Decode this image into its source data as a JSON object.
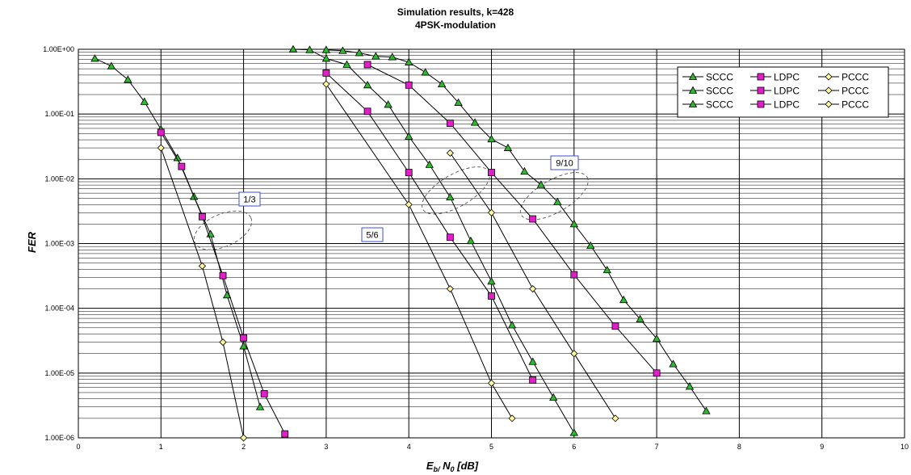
{
  "chart_data": {
    "type": "line",
    "title": "Simulation results, k=428",
    "subtitle": "4PSK-modulation",
    "xlabel_main": "E",
    "xlabel_sub": "b/",
    "xlabel_main2": " N",
    "xlabel_sub2": "0",
    "xlabel_tail": " [dB]",
    "ylabel": "FER",
    "xlim": [
      0,
      10
    ],
    "ylim": [
      1e-06,
      1
    ],
    "yscale": "log",
    "grid": true,
    "legend_placement": "top-right",
    "x_tick_labels": [
      "0",
      "1",
      "2",
      "3",
      "4",
      "5",
      "6",
      "7",
      "8",
      "9",
      "10"
    ],
    "y_tick_labels": [
      "1.00E-06",
      "1.00E-05",
      "1.00E-04",
      "1.00E-03",
      "1.00E-02",
      "1.00E-01",
      "1.00E+00"
    ],
    "legend": [
      {
        "label": "SCCC",
        "marker": "triangle",
        "color": "#2db82d"
      },
      {
        "label": "LDPC",
        "marker": "square",
        "color": "#e01fc8"
      },
      {
        "label": "PCCC",
        "marker": "diamond",
        "color": "#fff8a0"
      },
      {
        "label": "SCCC",
        "marker": "triangle",
        "color": "#2db82d"
      },
      {
        "label": "LDPC",
        "marker": "square",
        "color": "#e01fc8"
      },
      {
        "label": "PCCC",
        "marker": "diamond",
        "color": "#fff8a0"
      },
      {
        "label": "SCCC",
        "marker": "triangle",
        "color": "#2db82d"
      },
      {
        "label": "LDPC",
        "marker": "square",
        "color": "#e01fc8"
      },
      {
        "label": "PCCC",
        "marker": "diamond",
        "color": "#fff8a0"
      }
    ],
    "annotations": [
      "1/3",
      "5/6",
      "9/10"
    ],
    "series": [
      {
        "code": "SCCC",
        "rate": "1/3",
        "marker": "triangle",
        "color": "#2db82d",
        "x": [
          0.2,
          0.4,
          0.6,
          0.8,
          1.0,
          1.2,
          1.4,
          1.6,
          1.8,
          2.0,
          2.2
        ],
        "y": [
          0.72,
          0.55,
          0.34,
          0.155,
          0.058,
          0.021,
          0.0053,
          0.0014,
          0.00016,
          2.6e-05,
          3e-06
        ]
      },
      {
        "code": "LDPC",
        "rate": "1/3",
        "marker": "square",
        "color": "#e01fc8",
        "x": [
          1.0,
          1.25,
          1.5,
          1.75,
          2.0,
          2.25,
          2.5
        ],
        "y": [
          0.052,
          0.0155,
          0.0026,
          0.00032,
          3.5e-05,
          4.8e-06,
          1.15e-06
        ]
      },
      {
        "code": "PCCC",
        "rate": "1/3",
        "marker": "diamond",
        "color": "#fff8a0",
        "x": [
          1.0,
          1.5,
          1.75,
          2.0
        ],
        "y": [
          0.03,
          0.00045,
          3e-05,
          1e-06
        ]
      },
      {
        "code": "SCCC",
        "rate": "5/6",
        "marker": "triangle",
        "color": "#2db82d",
        "x": [
          2.6,
          2.8,
          3.0,
          3.25,
          3.5,
          3.75,
          4.0,
          4.25,
          4.5,
          4.75,
          5.0,
          5.25,
          5.5,
          5.75,
          6.0
        ],
        "y": [
          1.0,
          0.98,
          0.72,
          0.58,
          0.28,
          0.14,
          0.045,
          0.0165,
          0.0052,
          0.0011,
          0.00026,
          5.5e-05,
          1.5e-05,
          4.2e-06,
          1.2e-06
        ]
      },
      {
        "code": "LDPC",
        "rate": "5/6",
        "marker": "square",
        "color": "#e01fc8",
        "x": [
          3.0,
          3.5,
          4.0,
          4.5,
          5.0,
          5.5
        ],
        "y": [
          0.43,
          0.11,
          0.0125,
          0.00125,
          0.000155,
          7.8e-06
        ]
      },
      {
        "code": "PCCC",
        "rate": "5/6",
        "marker": "diamond",
        "color": "#fff8a0",
        "x": [
          3.0,
          4.0,
          4.5,
          5.0,
          5.25
        ],
        "y": [
          0.29,
          0.004,
          0.0002,
          7e-06,
          2e-06
        ]
      },
      {
        "code": "SCCC",
        "rate": "9/10",
        "marker": "triangle",
        "color": "#2db82d",
        "x": [
          3.0,
          3.2,
          3.4,
          3.6,
          3.8,
          4.0,
          4.2,
          4.4,
          4.6,
          4.8,
          5.0,
          5.2,
          5.4,
          5.6,
          5.8,
          6.0,
          6.2,
          6.4,
          6.6,
          6.8,
          7.0,
          7.2,
          7.4,
          7.6
        ],
        "y": [
          0.98,
          0.95,
          0.88,
          0.78,
          0.76,
          0.63,
          0.44,
          0.29,
          0.15,
          0.074,
          0.041,
          0.03,
          0.013,
          0.0081,
          0.0044,
          0.002,
          0.00093,
          0.00039,
          0.000135,
          6.8e-05,
          3.4e-05,
          1.38e-05,
          6.2e-06,
          2.6e-06
        ]
      },
      {
        "code": "LDPC",
        "rate": "9/10",
        "marker": "square",
        "color": "#e01fc8",
        "x": [
          3.5,
          4.0,
          4.5,
          5.0,
          5.5,
          6.0,
          6.5,
          7.0
        ],
        "y": [
          0.58,
          0.28,
          0.072,
          0.0125,
          0.0024,
          0.00033,
          5.3e-05,
          1e-05
        ]
      },
      {
        "code": "PCCC",
        "rate": "9/10",
        "marker": "diamond",
        "color": "#fff8a0",
        "x": [
          4.5,
          5.0,
          5.5,
          6.0,
          6.5
        ],
        "y": [
          0.025,
          0.003,
          0.0002,
          2e-05,
          2e-06
        ]
      }
    ]
  }
}
